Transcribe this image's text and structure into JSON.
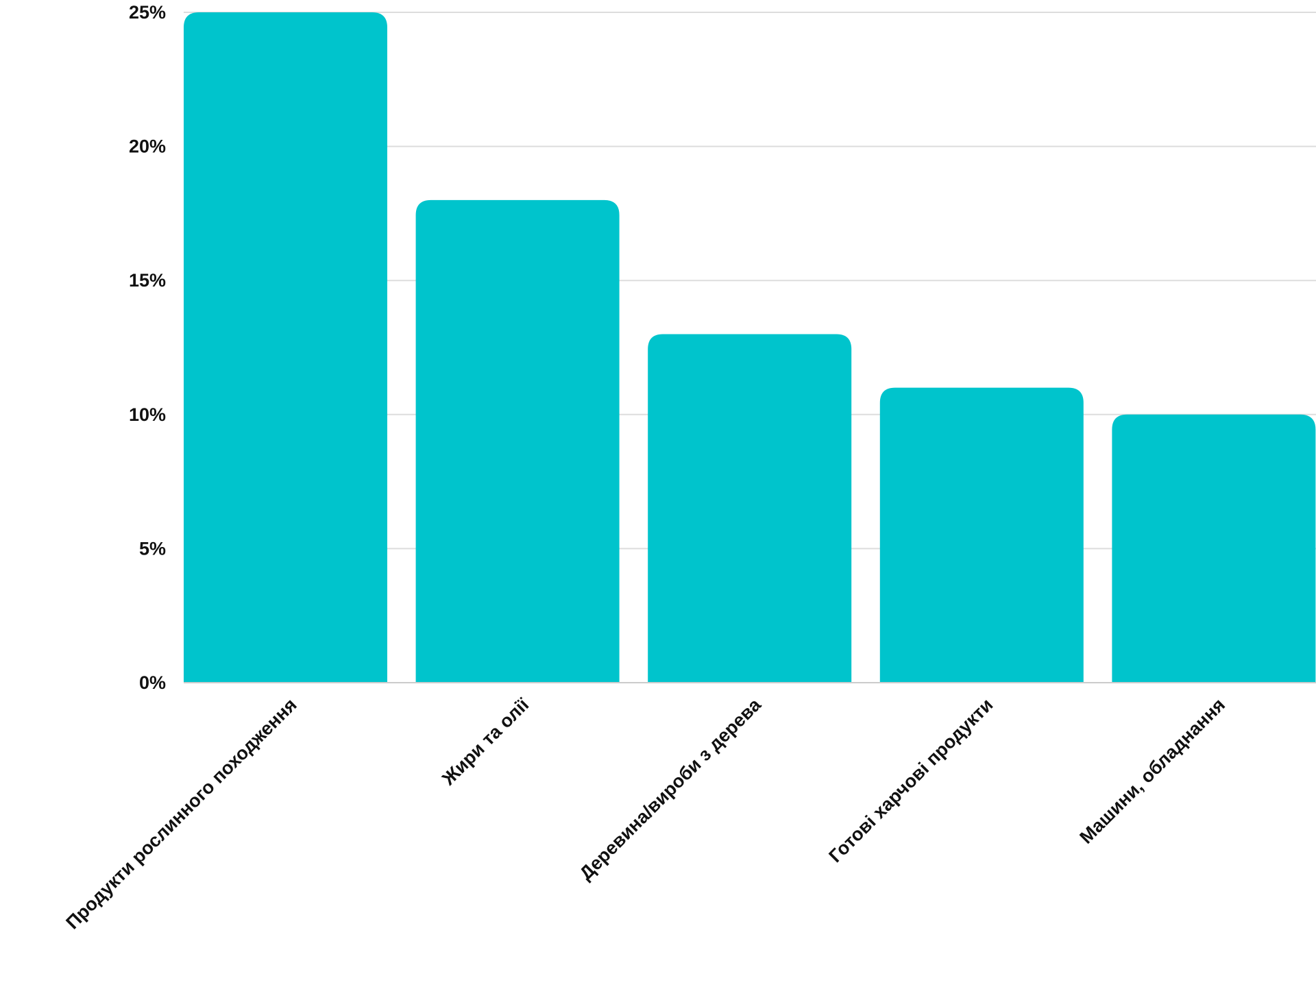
{
  "chart_data": {
    "type": "bar",
    "title": "",
    "xlabel": "",
    "ylabel": "",
    "categories": [
      "Продукти рослинного походження",
      "Жири та олії",
      "Деревина/вироби з дерева",
      "Готові харчові продукти",
      "Машини, обладнання"
    ],
    "values": [
      25,
      18,
      13,
      11,
      10
    ],
    "ylim": [
      0,
      25
    ],
    "yticks": [
      0,
      5,
      10,
      15,
      20,
      25
    ],
    "ytick_labels": [
      "0%",
      "5%",
      "10%",
      "15%",
      "20%",
      "25%"
    ],
    "grid": true,
    "bar_color": "#00C4CC",
    "grid_color": "#dddddd"
  }
}
